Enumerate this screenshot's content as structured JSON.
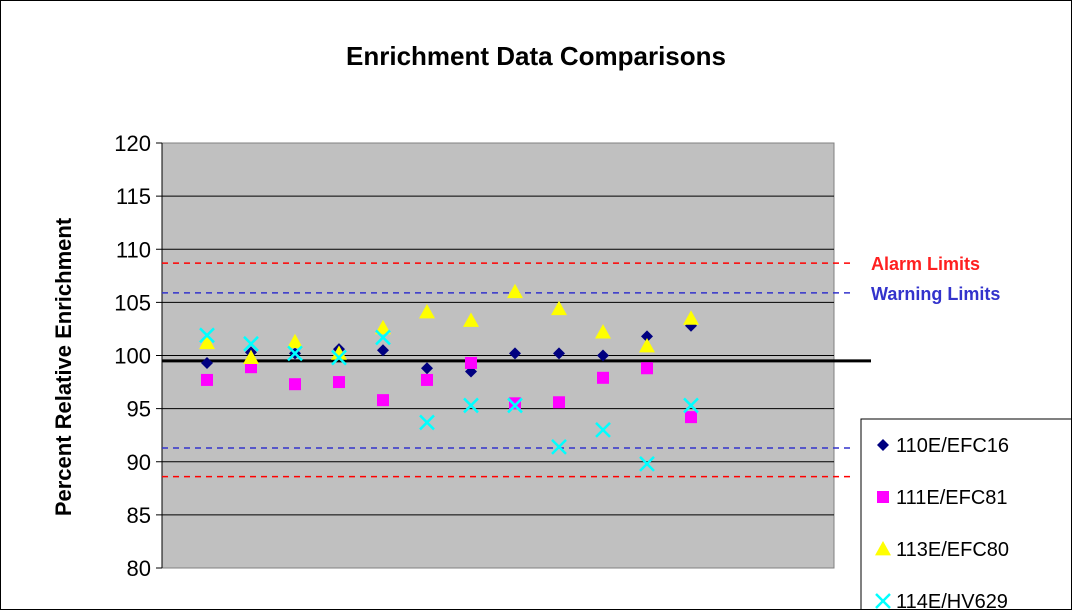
{
  "chart_data": {
    "type": "scatter",
    "title": "Enrichment Data Comparisons",
    "xlabel": "",
    "ylabel": "Percent Relative Enrichment",
    "ylim": [
      80,
      120
    ],
    "yticks": [
      120,
      115,
      110,
      105,
      100,
      95,
      90,
      85,
      80
    ],
    "x": [
      1,
      2,
      3,
      4,
      5,
      6,
      7,
      8,
      9,
      10,
      11,
      12
    ],
    "grid": true,
    "legend_position": "bottom-right",
    "plot_background": "#C0C0C0",
    "reference_line": {
      "value": 99.5,
      "color": "#000000"
    },
    "limit_lines": [
      {
        "name": "Alarm Limits",
        "values": [
          108.7,
          88.6
        ],
        "color": "#FF0000",
        "label_color": "#FF2020"
      },
      {
        "name": "Warning Limits",
        "values": [
          105.9,
          91.3
        ],
        "color": "#3333CC",
        "label_color": "#3333CC"
      }
    ],
    "series": [
      {
        "name": "110E/EFC16",
        "marker": "diamond",
        "color": "#000080",
        "values": [
          99.3,
          100.3,
          100.2,
          100.6,
          100.5,
          98.8,
          98.5,
          100.2,
          100.2,
          100.0,
          101.8,
          102.8
        ]
      },
      {
        "name": "111E/EFC81",
        "marker": "square",
        "color": "#FF00FF",
        "values": [
          97.7,
          98.9,
          97.3,
          97.5,
          95.8,
          97.7,
          99.3,
          95.5,
          95.6,
          97.9,
          98.8,
          94.2
        ]
      },
      {
        "name": "113E/EFC80",
        "marker": "triangle",
        "color": "#FFFF00",
        "values": [
          101.2,
          99.8,
          101.3,
          100.2,
          102.6,
          104.1,
          103.3,
          106.0,
          104.4,
          102.2,
          100.9,
          103.5
        ]
      },
      {
        "name": "114E/HV629",
        "marker": "x",
        "color": "#00FFFF",
        "values": [
          101.9,
          101.1,
          100.2,
          99.8,
          101.7,
          93.7,
          95.3,
          95.3,
          91.4,
          93.0,
          89.8,
          95.3
        ]
      }
    ]
  }
}
